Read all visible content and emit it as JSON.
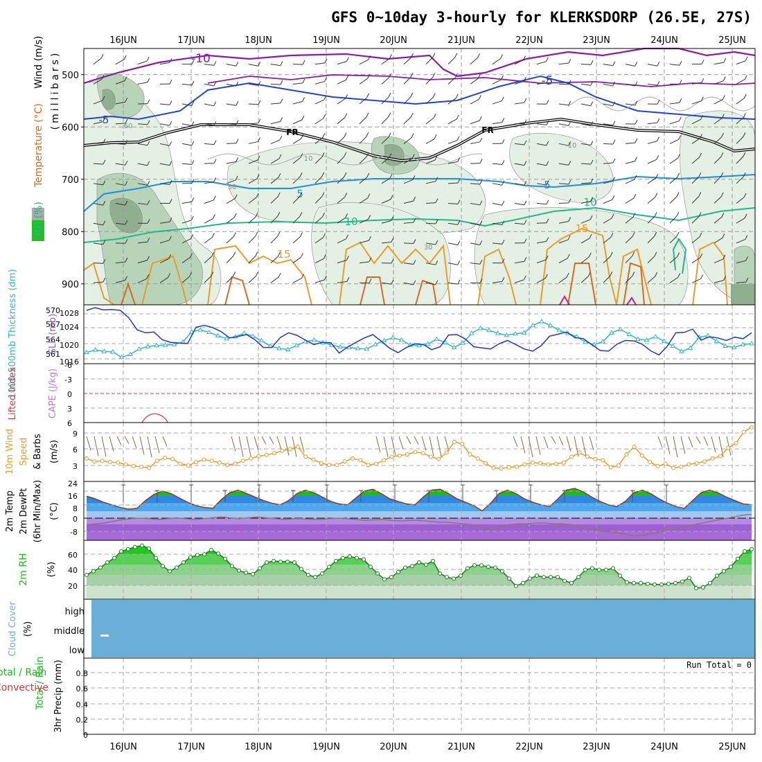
{
  "title": "GFS 0~10day 3-hourly for KLERKSDORP (26.5E, 27S)",
  "days": [
    "16JUN",
    "17JUN",
    "18JUN",
    "19JUN",
    "20JUN",
    "21JUN",
    "22JUN",
    "23JUN",
    "24JUN",
    "25JUN"
  ],
  "colors": {
    "rh_light": "#e4f0e4",
    "rh_mid": "#b8d4b8",
    "rh_dark": "#8faf8f",
    "purple": "#8a1aa8",
    "blue": "#2244cc",
    "lightblue": "#1e8fe0",
    "teal": "#1fb889",
    "orange": "#e89c2a",
    "darkorange": "#d86a1e",
    "magenta": "#d01c8b",
    "slp": "#2038c8",
    "thick": "#30b8c0",
    "wind10": "#e89c2a",
    "lifted": "#d83838",
    "cape": "#c078d8",
    "cloud": "#6baed6",
    "rh2m": "#22b822"
  },
  "panels": {
    "upper": {
      "ylabel_parts": [
        "RH (%)",
        "Temperature (°C)",
        "Wind (m/s)"
      ],
      "ylabel_unit": "(millibars)",
      "yticks": [
        "500",
        "600",
        "700",
        "800",
        "900"
      ],
      "contour_labels": [
        "-10",
        "-5",
        "FR",
        "FR",
        "-5",
        "5",
        "5",
        "10",
        "10",
        "15",
        "15",
        "10",
        "30",
        "30",
        "60",
        "10"
      ]
    },
    "slp": {
      "ylabel_left": "1000-500mb Thickness (dm)",
      "ylabel_right": "SLP (mb)",
      "left_ticks": [
        "570",
        "567",
        "564",
        "561"
      ],
      "right_ticks": [
        "1028",
        "1024",
        "1020",
        "1016"
      ]
    },
    "cape": {
      "ylabel_left": "Lifted Index",
      "ylabel_right": "CAPE (J/kg)",
      "ticks": [
        "-6",
        "-3",
        "0",
        "3",
        "6"
      ]
    },
    "wind": {
      "ylabel_parts": [
        "10m Wind",
        "Speed",
        "& Barbs"
      ],
      "unit": "(m/s)",
      "ticks": [
        "9",
        "6",
        "3"
      ]
    },
    "temp": {
      "ylabel_parts": [
        "2m Temp",
        "2m DewPt",
        "(6hr Min/Max)"
      ],
      "unit": "(°C)",
      "ticks": [
        "24",
        "16",
        "8",
        "0",
        "-8"
      ]
    },
    "rh": {
      "ylabel": "2m RH",
      "unit": "(%)",
      "ticks": [
        "60",
        "40",
        "20"
      ]
    },
    "cloud": {
      "ylabel": "Cloud Cover",
      "unit": "(%)",
      "levels": [
        "high",
        "middle",
        "low"
      ]
    },
    "precip": {
      "ylabel_left": [
        "Total / Rain",
        "Convective"
      ],
      "ylabel": "3hr Precip (mm)",
      "ticks": [
        "0.8",
        "0.6",
        "0.4",
        "0.2",
        "0"
      ],
      "run_total": "Run Total = 0"
    }
  },
  "chart_data": [
    {
      "type": "line",
      "name_key": "slp",
      "ylim": [
        1014,
        1030
      ],
      "values": [
        1028.5,
        1029.2,
        1028.6,
        1028.7,
        1028.5,
        1026.5,
        1023.2,
        1022.4,
        1022.6,
        1020.5,
        1019.8,
        1019.6,
        1019.5,
        1023.9,
        1024.4,
        1023.8,
        1022.7,
        1021.0,
        1021.4,
        1021.9,
        1020.5,
        1018.4,
        1018.4,
        1021.1,
        1022.4,
        1021.7,
        1020.4,
        1019.2,
        1019.8,
        1019.7,
        1016.9,
        1018.5,
        1019.8,
        1021.0,
        1021.9,
        1020.1,
        1018.2,
        1017.0,
        1018.4,
        1019.4,
        1019.2,
        1017.8,
        1018.6,
        1021.8,
        1021.9,
        1020.7,
        1018.6,
        1018.3,
        1018.0,
        1019.4,
        1020.3,
        1019.2,
        1018.0,
        1017.4,
        1018.9,
        1021.5,
        1022.0,
        1022.6,
        1021.1,
        1020.8,
        1019.2,
        1017.6,
        1017.4,
        1019.3,
        1020.3,
        1020.2,
        1019.3,
        1017.5,
        1016.4,
        1018.8,
        1022.4,
        1022.5,
        1023.4,
        1020.4,
        1021.3,
        1021.0,
        1020.3,
        1021.2,
        1020.8,
        1022.4
      ]
    },
    {
      "type": "line",
      "name_key": "thickness",
      "ylim": [
        559,
        571
      ],
      "values": [
        561.3,
        561.8,
        561.5,
        561.4,
        560.3,
        560.9,
        562.0,
        562.5,
        562.7,
        562.8,
        562.9,
        563.4,
        565.5,
        565.9,
        565.4,
        564.7,
        564.1,
        564.5,
        565.2,
        564.6,
        563.7,
        562.6,
        562.1,
        561.9,
        562.7,
        563.5,
        563.8,
        563.3,
        562.8,
        562.4,
        562.3,
        562.1,
        562.0,
        562.9,
        563.7,
        564.3,
        563.8,
        562.8,
        562.7,
        563.0,
        564.0,
        563.3,
        562.3,
        563.2,
        565.2,
        566.2,
        565.8,
        565.2,
        564.8,
        565.1,
        565.3,
        566.8,
        567.6,
        566.8,
        565.8,
        565.2,
        564.5,
        563.4,
        562.9,
        563.5,
        565.3,
        566.0,
        565.0,
        564.0,
        563.8,
        564.5,
        563.6,
        562.6,
        561.5,
        562.2,
        564.4,
        564.7,
        563.6,
        562.6,
        562.3,
        562.9,
        563.1
      ]
    },
    {
      "type": "line",
      "name_key": "wind10m",
      "ylim": [
        0,
        10
      ],
      "values": [
        3.9,
        3.4,
        3.5,
        3.3,
        3.2,
        2.9,
        2.6,
        2.5,
        2.3,
        3.5,
        4.0,
        3.8,
        3.0,
        2.7,
        3.3,
        3.7,
        3.5,
        3.2,
        2.8,
        3.0,
        3.5,
        3.9,
        4.3,
        4.5,
        4.8,
        5.2,
        5.5,
        5.9,
        4.2,
        3.7,
        3.1,
        2.8,
        2.8,
        3.4,
        3.9,
        3.6,
        2.8,
        3.0,
        3.6,
        4.2,
        4.4,
        4.6,
        5.0,
        4.8,
        4.2,
        3.8,
        4.9,
        6.7,
        6.4,
        4.6,
        3.9,
        3.1,
        2.3,
        2.2,
        2.4,
        2.5,
        2.9,
        3.2,
        3.1,
        2.9,
        3.0,
        3.2,
        4.2,
        4.9,
        4.2,
        3.8,
        3.6,
        2.4,
        2.7,
        4.6,
        5.9,
        4.4,
        3.3,
        2.6,
        3.0,
        2.3,
        2.5,
        2.9,
        3.1,
        3.4,
        3.9,
        4.3,
        5.7,
        6.5,
        8.4,
        9.2
      ]
    },
    {
      "type": "area",
      "name_key": "temp2m",
      "ylim": [
        -10,
        24
      ],
      "values": [
        15.5,
        14.0,
        12.0,
        10.5,
        9.0,
        8.0,
        8.5,
        13.0,
        16.5,
        18.5,
        17.0,
        14.5,
        12.0,
        10.0,
        9.0,
        8.5,
        13.5,
        17.5,
        19.0,
        17.0,
        15.0,
        13.0,
        11.5,
        10.5,
        13.0,
        17.0,
        19.0,
        17.5,
        15.0,
        12.5,
        11.0,
        10.5,
        14.5,
        18.5,
        19.5,
        17.0,
        14.0,
        12.5,
        11.0,
        10.5,
        15.0,
        19.0,
        19.5,
        17.0,
        14.0,
        12.0,
        10.0,
        7.0,
        11.5,
        17.0,
        19.0,
        17.0,
        14.0,
        12.0,
        10.5,
        9.5,
        14.0,
        19.0,
        20.0,
        18.0,
        15.0,
        12.5,
        10.5,
        9.5,
        12.5,
        17.5,
        19.0,
        17.0,
        14.0,
        11.5,
        9.5,
        8.5,
        13.0,
        17.5,
        19.0,
        17.5,
        15.0,
        13.0,
        11.0,
        10.5
      ]
    },
    {
      "type": "line",
      "name_key": "dewpt2m",
      "ylim": [
        -10,
        24
      ],
      "values": [
        -1.0,
        -0.5,
        0.0,
        1.0,
        2.0,
        2.5,
        2.8,
        2.5,
        2.0,
        2.5,
        3.0,
        2.5,
        2.0,
        2.5,
        3.0,
        3.5,
        3.0,
        2.5,
        3.0,
        3.5,
        3.0,
        2.5,
        2.0,
        2.5,
        2.5,
        2.0,
        2.0,
        2.5,
        2.8,
        2.5,
        2.0,
        1.5,
        1.8,
        2.0,
        1.5,
        1.2,
        1.5,
        1.5,
        1.0,
        0.5,
        0.5,
        0.0,
        -0.5,
        -1.0,
        -2.5,
        -3.5,
        -2.0,
        -1.0,
        -0.5,
        -0.5,
        0.0,
        0.0,
        -0.5,
        -0.5,
        -1.0,
        -2.0,
        -3.5,
        -4.5,
        -5.0,
        -5.5,
        -6.5,
        -7.5,
        -7.0,
        -6.0,
        -5.0,
        -3.5,
        -2.5,
        -1.5,
        -0.5,
        0.5,
        1.5,
        2.5,
        3.5,
        4.5,
        5.0
      ]
    },
    {
      "type": "area",
      "name_key": "rh2m",
      "ylim": [
        0,
        80
      ],
      "values": [
        33,
        38,
        43,
        50,
        56,
        65,
        68,
        71,
        73,
        69,
        56,
        45,
        38,
        43,
        50,
        57,
        60,
        61,
        67,
        62,
        55,
        45,
        39,
        36,
        34,
        42,
        50,
        52,
        51,
        51,
        50,
        41,
        33,
        30,
        35,
        44,
        52,
        56,
        58,
        56,
        54,
        44,
        35,
        27,
        30,
        37,
        43,
        45,
        50,
        47,
        52,
        35,
        30,
        28,
        32,
        42,
        46,
        46,
        44,
        43,
        38,
        28,
        18,
        22,
        28,
        32,
        30,
        30,
        30,
        25,
        22,
        30,
        40,
        42,
        40,
        40,
        42,
        32,
        23,
        22,
        22,
        21,
        20,
        20,
        21,
        22,
        24,
        29,
        15,
        16,
        22,
        32,
        38,
        44,
        55,
        65,
        68
      ]
    },
    {
      "type": "bar",
      "name_key": "precip3h",
      "ylim": [
        0,
        1
      ],
      "values": []
    }
  ]
}
